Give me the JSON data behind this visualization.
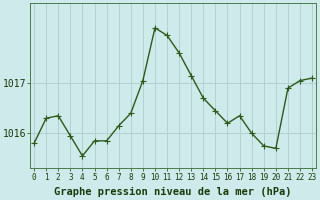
{
  "x": [
    0,
    1,
    2,
    3,
    4,
    5,
    6,
    7,
    8,
    9,
    10,
    11,
    12,
    13,
    14,
    15,
    16,
    17,
    18,
    19,
    20,
    21,
    22,
    23
  ],
  "y": [
    1015.8,
    1016.3,
    1016.35,
    1015.95,
    1015.55,
    1015.85,
    1015.85,
    1016.15,
    1016.4,
    1017.05,
    1018.1,
    1017.95,
    1017.6,
    1017.15,
    1016.7,
    1016.45,
    1016.2,
    1016.35,
    1016.0,
    1015.75,
    1015.7,
    1016.9,
    1017.05,
    1017.1
  ],
  "line_color": "#2d5a1b",
  "marker_color": "#2d5a1b",
  "bg_color": "#ceeaea",
  "grid_color_major": "#b0cccc",
  "grid_color_minor": "#c8e0e0",
  "xlabel": "Graphe pression niveau de la mer (hPa)",
  "xlabel_color": "#1a3a0a",
  "yticks": [
    1016,
    1017
  ],
  "ylim": [
    1015.3,
    1018.6
  ],
  "xlim": [
    -0.3,
    23.3
  ],
  "tick_color": "#1a3a0a",
  "font_size_xlabel": 7.5,
  "font_size_yticks": 7,
  "font_size_xticks": 5.5,
  "linewidth": 1.0,
  "markersize": 2.2
}
